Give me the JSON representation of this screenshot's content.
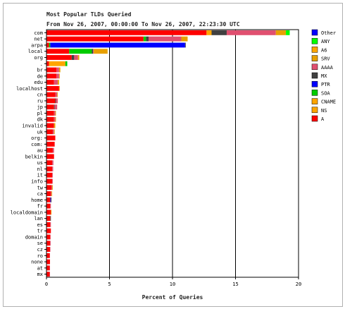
{
  "chart_data": {
    "type": "bar",
    "orientation": "horizontal",
    "stacked": true,
    "title": "Most Popular TLDs Queried",
    "subtitle": "From Nov 26, 2007, 00:00:00 To Nov 26, 2007, 22:23:30 UTC",
    "xlabel": "Percent of Queries",
    "ylabel": "",
    "xlim": [
      0,
      20
    ],
    "xticks": [
      0,
      5,
      10,
      15,
      20
    ],
    "grid": true,
    "legend_position": "right",
    "series_order": [
      "A",
      "NS",
      "CNAME",
      "SOA",
      "PTR",
      "MX",
      "AAAA",
      "SRV",
      "A6",
      "ANY",
      "Other"
    ],
    "legend_order": [
      "Other",
      "ANY",
      "A6",
      "SRV",
      "AAAA",
      "MX",
      "PTR",
      "SOA",
      "CNAME",
      "NS",
      "A"
    ],
    "colors": {
      "A": "#ff0000",
      "NS": "#ffa500",
      "CNAME": "#ffa500",
      "SOA": "#00cc00",
      "PTR": "#0000ff",
      "MX": "#404040",
      "AAAA": "#e05070",
      "SRV": "#e8a000",
      "A6": "#ffa500",
      "ANY": "#00ff00",
      "Other": "#0000ff"
    },
    "categories": [
      {
        "label": "com",
        "values": {
          "A": 12.7,
          "NS": 0.4,
          "MX": 1.2,
          "AAAA": 3.9,
          "SRV": 0.8,
          "ANY": 0.3
        }
      },
      {
        "label": "net",
        "values": {
          "A": 7.7,
          "SOA": 0.2,
          "MX": 0.2,
          "AAAA": 2.6,
          "SRV": 0.5
        }
      },
      {
        "label": "arpa",
        "values": {
          "A": 0.2,
          "SOA": 0.1,
          "PTR": 10.7,
          "MX": 0.05
        }
      },
      {
        "label": "local",
        "values": {
          "A": 1.8,
          "SOA": 1.8,
          "MX": 0.1,
          "SRV": 1.1,
          "AAAA": 0.05
        }
      },
      {
        "label": "org",
        "values": {
          "A": 2.0,
          "MX": 0.2,
          "AAAA": 0.3,
          "SRV": 0.1
        }
      },
      {
        "label": ".",
        "values": {
          "A": 0.2,
          "NS": 1.3,
          "SOA": 0.15
        }
      },
      {
        "label": "br",
        "values": {
          "A": 0.8,
          "AAAA": 0.2,
          "SRV": 0.1
        }
      },
      {
        "label": "de",
        "values": {
          "A": 0.8,
          "AAAA": 0.2,
          "SRV": 0.05
        }
      },
      {
        "label": "edu",
        "values": {
          "A": 0.6,
          "AAAA": 0.3,
          "SRV": 0.1
        }
      },
      {
        "label": "localhost",
        "values": {
          "A": 1.0,
          "SRV": 0.05
        }
      },
      {
        "label": "cn",
        "values": {
          "A": 0.7,
          "AAAA": 0.15,
          "SRV": 0.05
        }
      },
      {
        "label": "ru",
        "values": {
          "A": 0.7,
          "AAAA": 0.15,
          "MX": 0.05
        }
      },
      {
        "label": "jp",
        "values": {
          "A": 0.6,
          "AAAA": 0.2,
          "MX": 0.05
        }
      },
      {
        "label": "pl",
        "values": {
          "A": 0.6,
          "AAAA": 0.1,
          "SRV": 0.05
        }
      },
      {
        "label": "dk",
        "values": {
          "A": 0.6,
          "AAAA": 0.1,
          "SRV": 0.05
        }
      },
      {
        "label": "invalid",
        "values": {
          "A": 0.6,
          "SRV": 0.1
        }
      },
      {
        "label": "uk",
        "values": {
          "A": 0.5,
          "AAAA": 0.1,
          "SRV": 0.05
        }
      },
      {
        "label": "org:",
        "values": {
          "A": 0.7
        }
      },
      {
        "label": "com:",
        "values": {
          "A": 0.65
        }
      },
      {
        "label": "au",
        "values": {
          "A": 0.5,
          "AAAA": 0.1
        }
      },
      {
        "label": "belkin",
        "values": {
          "A": 0.6
        }
      },
      {
        "label": "us",
        "values": {
          "A": 0.45,
          "AAAA": 0.1
        }
      },
      {
        "label": "nl",
        "values": {
          "A": 0.45,
          "AAAA": 0.08
        }
      },
      {
        "label": "it",
        "values": {
          "A": 0.45,
          "AAAA": 0.05
        }
      },
      {
        "label": "info",
        "values": {
          "A": 0.45,
          "AAAA": 0.05
        }
      },
      {
        "label": "tw",
        "values": {
          "A": 0.4,
          "AAAA": 0.05,
          "SRV": 0.05
        }
      },
      {
        "label": "ca",
        "values": {
          "A": 0.35,
          "AAAA": 0.05,
          "SRV": 0.05
        }
      },
      {
        "label": "home",
        "values": {
          "A": 0.3,
          "PTR": 0.05,
          "MX": 0.05
        }
      },
      {
        "label": "fr",
        "values": {
          "A": 0.3,
          "AAAA": 0.05
        }
      },
      {
        "label": "localdomain",
        "values": {
          "A": 0.35,
          "SRV": 0.05
        }
      },
      {
        "label": "lan",
        "values": {
          "A": 0.3,
          "MX": 0.05
        }
      },
      {
        "label": "es",
        "values": {
          "A": 0.3,
          "AAAA": 0.05
        }
      },
      {
        "label": "tr",
        "values": {
          "A": 0.35
        }
      },
      {
        "label": "domain",
        "values": {
          "A": 0.3,
          "AAAA": 0.03
        }
      },
      {
        "label": "se",
        "values": {
          "A": 0.28,
          "AAAA": 0.05
        }
      },
      {
        "label": "cz",
        "values": {
          "A": 0.28,
          "AAAA": 0.03
        }
      },
      {
        "label": "ro",
        "values": {
          "A": 0.25,
          "AAAA": 0.03
        }
      },
      {
        "label": "none",
        "values": {
          "A": 0.28
        }
      },
      {
        "label": "at",
        "values": {
          "A": 0.25,
          "AAAA": 0.03
        }
      },
      {
        "label": "mx",
        "values": {
          "A": 0.25,
          "AAAA": 0.03
        }
      }
    ]
  }
}
